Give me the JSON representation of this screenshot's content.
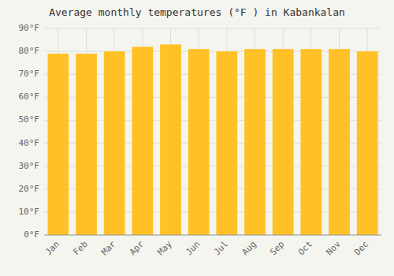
{
  "chart_data": {
    "type": "bar",
    "title": "Average monthly temperatures (°F ) in Kabankalan",
    "categories": [
      "Jan",
      "Feb",
      "Mar",
      "Apr",
      "May",
      "Jun",
      "Jul",
      "Aug",
      "Sep",
      "Oct",
      "Nov",
      "Dec"
    ],
    "values": [
      79,
      79,
      80,
      82,
      83,
      81,
      80,
      81,
      81,
      81,
      81,
      80
    ],
    "color": "#FFC125",
    "ylim": [
      0,
      90
    ],
    "yticks": [
      {
        "value": 0,
        "label": "0°F"
      },
      {
        "value": 10,
        "label": "10°F"
      },
      {
        "value": 20,
        "label": "20°F"
      },
      {
        "value": 30,
        "label": "30°F"
      },
      {
        "value": 40,
        "label": "40°F"
      },
      {
        "value": 50,
        "label": "50°F"
      },
      {
        "value": 60,
        "label": "60°F"
      },
      {
        "value": 70,
        "label": "70°F"
      },
      {
        "value": 80,
        "label": "80°F"
      },
      {
        "value": 90,
        "label": "90°F"
      }
    ],
    "grid": true
  }
}
